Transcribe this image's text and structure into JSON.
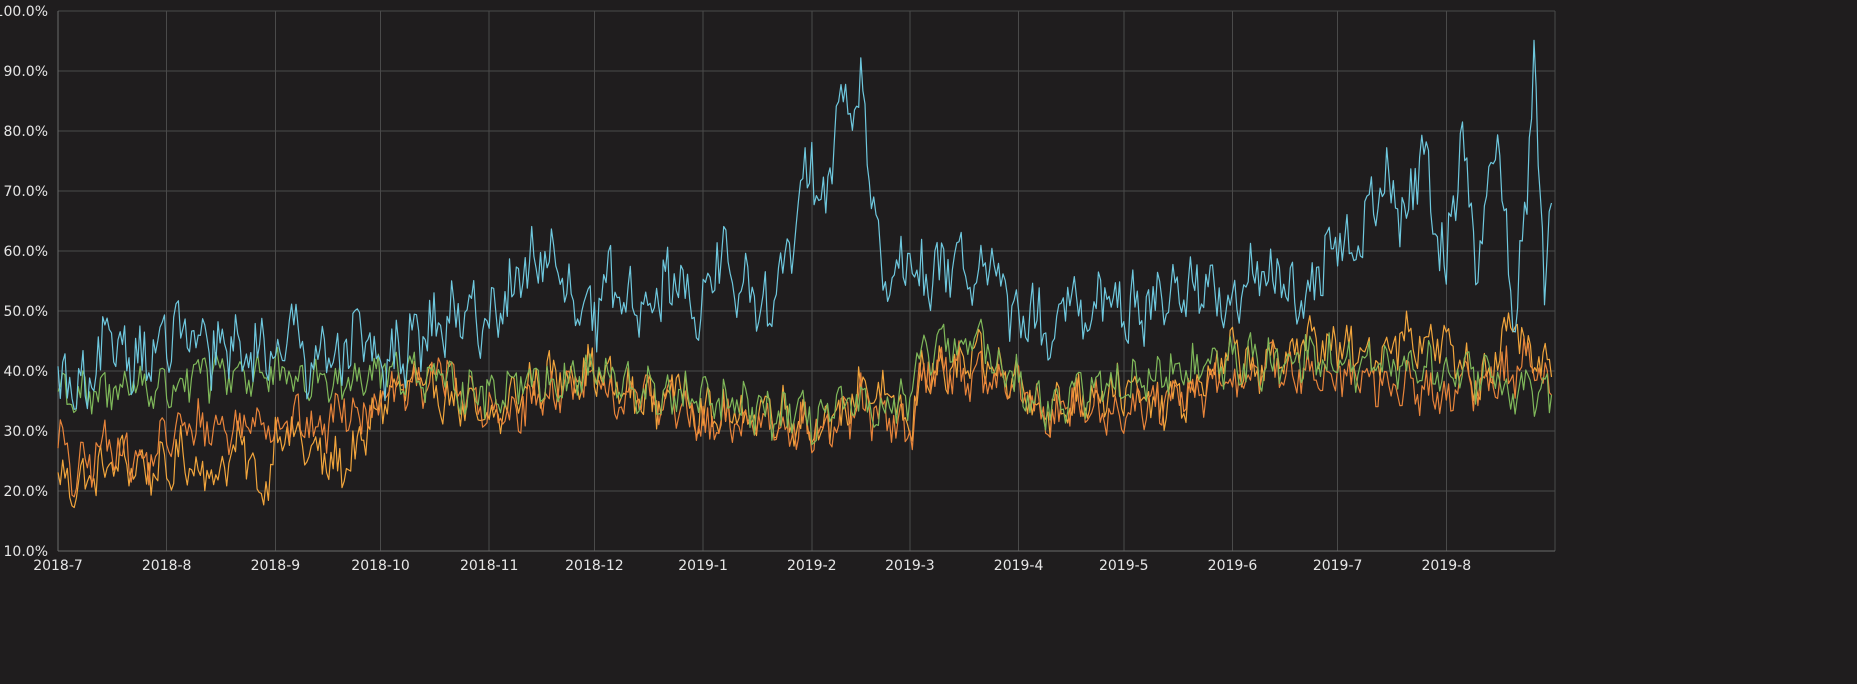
{
  "chart_data": {
    "type": "line",
    "x_range": [
      "2018-07-01",
      "2019-09-01"
    ],
    "ylim": [
      10,
      100
    ],
    "y_ticks": [
      "100.0%",
      "90.0%",
      "80.0%",
      "70.0%",
      "60.0%",
      "50.0%",
      "40.0%",
      "30.0%",
      "20.0%",
      "10.0%"
    ],
    "x_ticks": [
      "2018-7",
      "2018-8",
      "2018-9",
      "2018-10",
      "2018-11",
      "2018-12",
      "2019-1",
      "2019-2",
      "2019-3",
      "2019-4",
      "2019-5",
      "2019-6",
      "2019-7",
      "2019-8"
    ],
    "grid": true,
    "legend": "none",
    "series": [
      {
        "color": "#f2a53c",
        "x": [
          "2018-07-01",
          "2018-07-05",
          "2018-07-10",
          "2018-07-15",
          "2018-07-20",
          "2018-07-25",
          "2018-08-01",
          "2018-08-05",
          "2018-08-10",
          "2018-08-15",
          "2018-08-20",
          "2018-08-25",
          "2018-08-28",
          "2018-09-01",
          "2018-09-05",
          "2018-09-10",
          "2018-09-15",
          "2018-09-20",
          "2018-09-25",
          "2018-10-01",
          "2018-10-10",
          "2018-10-20",
          "2018-11-01",
          "2018-11-10",
          "2018-11-20",
          "2018-12-01",
          "2018-12-10",
          "2018-12-20",
          "2018-12-25",
          "2019-01-01",
          "2019-01-10",
          "2019-01-20",
          "2019-02-01",
          "2019-02-10",
          "2019-02-15",
          "2019-02-20",
          "2019-02-25",
          "2019-03-01",
          "2019-03-05",
          "2019-03-10",
          "2019-03-20",
          "2019-04-01",
          "2019-04-10",
          "2019-04-20",
          "2019-05-01",
          "2019-05-10",
          "2019-05-20",
          "2019-06-01",
          "2019-06-10",
          "2019-06-20",
          "2019-07-01",
          "2019-07-10",
          "2019-07-20",
          "2019-08-01",
          "2019-08-10",
          "2019-08-20",
          "2019-08-25",
          "2019-08-31"
        ],
        "values": [
          22,
          21,
          22,
          24,
          25,
          24,
          23,
          26,
          24,
          22,
          27,
          26,
          18,
          29,
          30,
          27,
          25,
          24,
          27,
          35,
          38,
          36,
          31,
          37,
          39,
          40,
          36,
          35,
          38,
          33,
          32,
          34,
          31,
          32,
          38,
          36,
          34,
          30,
          41,
          39,
          42,
          38,
          33,
          36,
          37,
          34,
          36,
          43,
          40,
          45,
          44,
          42,
          46,
          44,
          38,
          47,
          42,
          39
        ]
      },
      {
        "color": "#e8843a",
        "x": [
          "2018-07-01",
          "2018-07-05",
          "2018-07-10",
          "2018-07-15",
          "2018-07-20",
          "2018-07-25",
          "2018-08-01",
          "2018-08-10",
          "2018-08-20",
          "2018-08-28",
          "2018-09-01",
          "2018-09-05",
          "2018-09-10",
          "2018-09-15",
          "2018-09-20",
          "2018-09-25",
          "2018-10-01",
          "2018-10-10",
          "2018-10-20",
          "2018-11-01",
          "2018-11-10",
          "2018-11-20",
          "2018-12-01",
          "2018-12-10",
          "2018-12-20",
          "2018-12-25",
          "2019-01-01",
          "2019-01-10",
          "2019-01-20",
          "2019-02-01",
          "2019-02-10",
          "2019-02-15",
          "2019-02-20",
          "2019-02-25",
          "2019-03-01",
          "2019-03-05",
          "2019-03-10",
          "2019-03-20",
          "2019-04-01",
          "2019-04-10",
          "2019-04-20",
          "2019-05-01",
          "2019-05-10",
          "2019-05-20",
          "2019-06-01",
          "2019-06-10",
          "2019-06-20",
          "2019-07-01",
          "2019-07-10",
          "2019-07-20",
          "2019-08-01",
          "2019-08-10",
          "2019-08-20",
          "2019-08-25",
          "2019-08-31"
        ],
        "values": [
          30,
          22,
          25,
          28,
          27,
          24,
          29,
          31,
          30,
          33,
          30,
          32,
          31,
          30,
          35,
          33,
          35,
          37,
          40,
          32,
          34,
          37,
          38,
          35,
          36,
          34,
          30,
          31,
          32,
          30,
          31,
          35,
          32,
          31,
          30,
          40,
          41,
          39,
          37,
          32,
          35,
          33,
          34,
          36,
          38,
          41,
          39,
          40,
          38,
          37,
          36,
          38,
          40,
          42,
          36
        ]
      },
      {
        "color": "#7fb85a",
        "x": [
          "2018-07-01",
          "2018-07-10",
          "2018-07-20",
          "2018-08-01",
          "2018-08-10",
          "2018-08-20",
          "2018-09-01",
          "2018-09-10",
          "2018-09-20",
          "2018-10-01",
          "2018-10-10",
          "2018-10-20",
          "2018-11-01",
          "2018-11-10",
          "2018-11-20",
          "2018-12-01",
          "2018-12-10",
          "2018-12-20",
          "2019-01-01",
          "2019-01-10",
          "2019-01-20",
          "2019-02-01",
          "2019-02-10",
          "2019-02-20",
          "2019-03-01",
          "2019-03-05",
          "2019-03-10",
          "2019-03-20",
          "2019-04-01",
          "2019-04-10",
          "2019-04-20",
          "2019-05-01",
          "2019-05-10",
          "2019-05-20",
          "2019-06-01",
          "2019-06-10",
          "2019-06-20",
          "2019-07-01",
          "2019-07-10",
          "2019-07-20",
          "2019-08-01",
          "2019-08-10",
          "2019-08-20",
          "2019-08-31"
        ],
        "values": [
          37,
          35,
          38,
          37,
          39,
          40,
          39,
          38,
          39,
          40,
          40,
          38,
          36,
          39,
          38,
          40,
          37,
          36,
          35,
          34,
          33,
          32,
          34,
          33,
          35,
          43,
          44,
          45,
          38,
          34,
          37,
          38,
          39,
          40,
          42,
          41,
          43,
          41,
          40,
          41,
          40,
          39,
          37,
          36
        ]
      },
      {
        "color": "#6ec8de",
        "x": [
          "2018-07-01",
          "2018-07-05",
          "2018-07-10",
          "2018-07-15",
          "2018-07-20",
          "2018-07-25",
          "2018-08-01",
          "2018-08-05",
          "2018-08-10",
          "2018-08-15",
          "2018-08-20",
          "2018-08-25",
          "2018-08-30",
          "2018-09-01",
          "2018-09-05",
          "2018-09-10",
          "2018-09-15",
          "2018-09-20",
          "2018-09-25",
          "2018-10-01",
          "2018-10-10",
          "2018-10-20",
          "2018-11-01",
          "2018-11-10",
          "2018-11-15",
          "2018-11-20",
          "2018-11-25",
          "2018-12-01",
          "2018-12-05",
          "2018-12-10",
          "2018-12-20",
          "2018-12-25",
          "2019-01-01",
          "2019-01-05",
          "2019-01-10",
          "2019-01-15",
          "2019-01-20",
          "2019-01-25",
          "2019-02-01",
          "2019-02-05",
          "2019-02-08",
          "2019-02-12",
          "2019-02-15",
          "2019-02-18",
          "2019-02-22",
          "2019-03-01",
          "2019-03-05",
          "2019-03-10",
          "2019-03-15",
          "2019-03-20",
          "2019-03-25",
          "2019-04-01",
          "2019-04-05",
          "2019-04-10",
          "2019-04-15",
          "2019-04-20",
          "2019-04-25",
          "2019-05-01",
          "2019-05-10",
          "2019-05-20",
          "2019-06-01",
          "2019-06-10",
          "2019-06-20",
          "2019-06-25",
          "2019-07-01",
          "2019-07-05",
          "2019-07-10",
          "2019-07-15",
          "2019-07-20",
          "2019-07-25",
          "2019-08-01",
          "2019-08-05",
          "2019-08-10",
          "2019-08-15",
          "2019-08-20",
          "2019-08-24",
          "2019-08-26",
          "2019-08-29",
          "2019-08-31"
        ],
        "values": [
          38,
          37,
          36,
          45,
          44,
          42,
          45,
          47,
          44,
          43,
          44,
          42,
          45,
          42,
          48,
          42,
          44,
          43,
          46,
          40,
          45,
          48,
          49,
          55,
          60,
          57,
          50,
          48,
          55,
          52,
          53,
          55,
          50,
          60,
          55,
          52,
          50,
          58,
          76,
          68,
          85,
          82,
          88,
          72,
          52,
          58,
          55,
          57,
          60,
          54,
          58,
          46,
          50,
          44,
          52,
          48,
          54,
          50,
          52,
          55,
          50,
          58,
          52,
          55,
          62,
          60,
          66,
          72,
          64,
          78,
          56,
          80,
          56,
          82,
          48,
          68,
          94,
          52,
          68
        ]
      }
    ]
  }
}
